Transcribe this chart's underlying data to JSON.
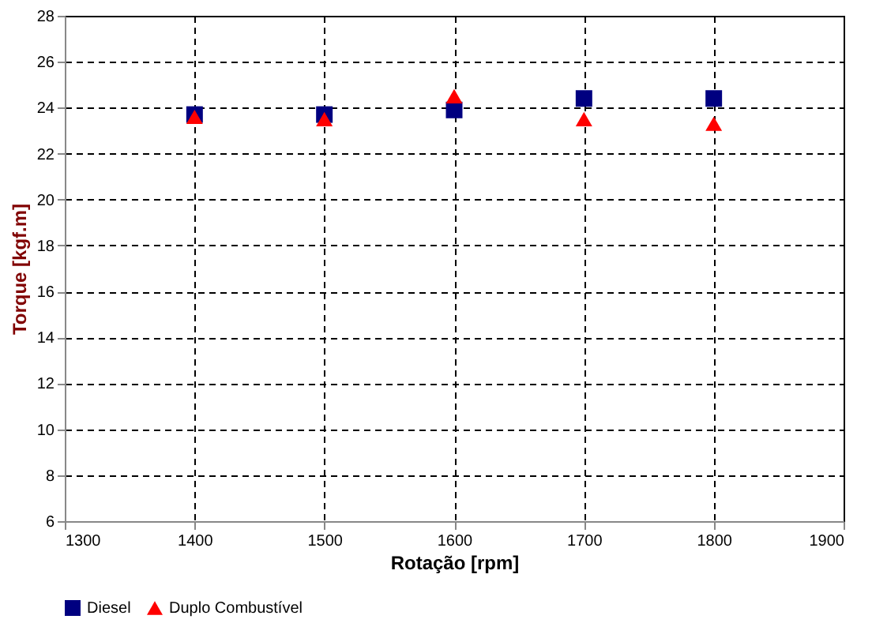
{
  "chart_data": {
    "type": "scatter",
    "xlabel": "Rotação [rpm]",
    "ylabel": "Torque [kgf.m]",
    "x": [
      1400,
      1500,
      1600,
      1700,
      1800
    ],
    "series": [
      {
        "name": "Diesel",
        "color": "#000080",
        "marker": "square",
        "values": [
          23.7,
          23.7,
          23.9,
          24.4,
          24.4
        ]
      },
      {
        "name": "Duplo Combustível",
        "color": "#ff0000",
        "marker": "triangle",
        "values": [
          23.6,
          23.5,
          24.5,
          23.5,
          23.3
        ]
      }
    ],
    "xlim": [
      1300,
      1900
    ],
    "xticks": [
      1300,
      1400,
      1500,
      1600,
      1700,
      1800,
      1900
    ],
    "ylim": [
      6,
      28
    ],
    "yticks": [
      6,
      8,
      10,
      12,
      14,
      16,
      18,
      20,
      22,
      24,
      26,
      28
    ],
    "grid": true,
    "legend": "bottom"
  }
}
